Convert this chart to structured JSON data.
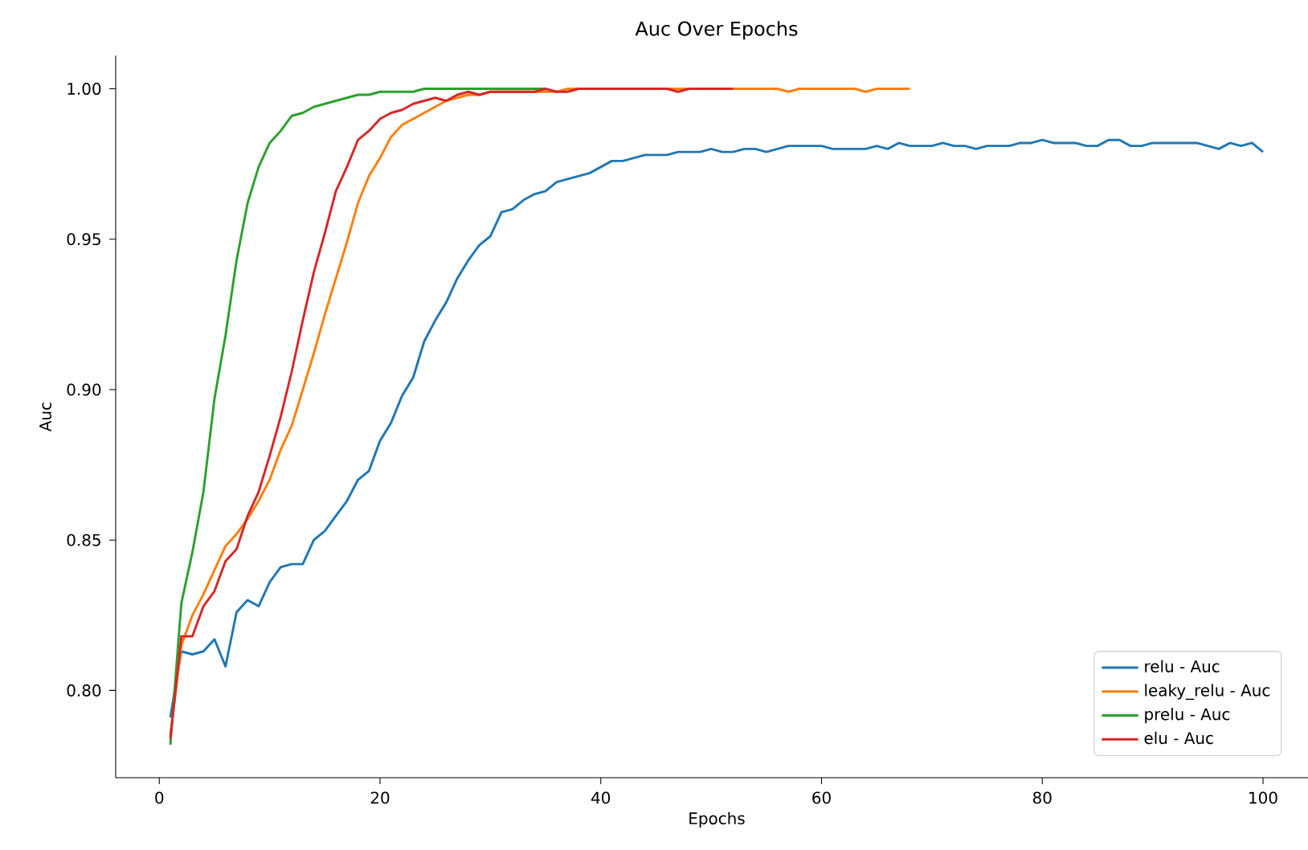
{
  "chart_data": {
    "type": "line",
    "title": "Auc Over Epochs",
    "xlabel": "Epochs",
    "ylabel": "Auc",
    "xlim": [
      -3.95,
      104.95
    ],
    "ylim": [
      0.771,
      1.011
    ],
    "xticks": [
      0,
      20,
      40,
      60,
      80,
      100
    ],
    "yticks": [
      {
        "value": 0.8,
        "label": "0.80"
      },
      {
        "value": 0.85,
        "label": "0.85"
      },
      {
        "value": 0.9,
        "label": "0.90"
      },
      {
        "value": 0.95,
        "label": "0.95"
      },
      {
        "value": 1.0,
        "label": "1.00"
      }
    ],
    "grid": false,
    "legend": "bottom right",
    "marker": "none",
    "line_style": "solid",
    "series": [
      {
        "name": "relu - Auc",
        "color": "#1f77b4",
        "x": [
          1,
          2,
          3,
          4,
          5,
          6,
          7,
          8,
          9,
          10,
          11,
          12,
          13,
          14,
          15,
          16,
          17,
          18,
          19,
          20,
          21,
          22,
          23,
          24,
          25,
          26,
          27,
          28,
          29,
          30,
          31,
          32,
          33,
          34,
          35,
          36,
          37,
          38,
          39,
          40,
          41,
          42,
          43,
          44,
          45,
          46,
          47,
          48,
          49,
          50,
          51,
          52,
          53,
          54,
          55,
          56,
          57,
          58,
          59,
          60,
          61,
          62,
          63,
          64,
          65,
          66,
          67,
          68,
          69,
          70,
          71,
          72,
          73,
          74,
          75,
          76,
          77,
          78,
          79,
          80,
          81,
          82,
          83,
          84,
          85,
          86,
          87,
          88,
          89,
          90,
          91,
          92,
          93,
          94,
          95,
          96,
          97,
          98,
          99,
          100
        ],
        "values": [
          0.791,
          0.813,
          0.812,
          0.813,
          0.817,
          0.808,
          0.826,
          0.83,
          0.828,
          0.836,
          0.841,
          0.842,
          0.842,
          0.85,
          0.853,
          0.858,
          0.863,
          0.87,
          0.873,
          0.883,
          0.889,
          0.898,
          0.904,
          0.916,
          0.923,
          0.929,
          0.937,
          0.943,
          0.948,
          0.951,
          0.959,
          0.96,
          0.963,
          0.965,
          0.966,
          0.969,
          0.97,
          0.971,
          0.972,
          0.974,
          0.976,
          0.976,
          0.977,
          0.978,
          0.978,
          0.978,
          0.979,
          0.979,
          0.979,
          0.98,
          0.979,
          0.979,
          0.98,
          0.98,
          0.979,
          0.98,
          0.981,
          0.981,
          0.981,
          0.981,
          0.98,
          0.98,
          0.98,
          0.98,
          0.981,
          0.98,
          0.982,
          0.981,
          0.981,
          0.981,
          0.982,
          0.981,
          0.981,
          0.98,
          0.981,
          0.981,
          0.981,
          0.982,
          0.982,
          0.983,
          0.982,
          0.982,
          0.982,
          0.981,
          0.981,
          0.983,
          0.983,
          0.981,
          0.981,
          0.982,
          0.982,
          0.982,
          0.982,
          0.982,
          0.981,
          0.98,
          0.982,
          0.981,
          0.982,
          0.979
        ]
      },
      {
        "name": "leaky_relu - Auc",
        "color": "#ff7f0e",
        "x": [
          1,
          2,
          3,
          4,
          5,
          6,
          7,
          8,
          9,
          10,
          11,
          12,
          13,
          14,
          15,
          16,
          17,
          18,
          19,
          20,
          21,
          22,
          23,
          24,
          25,
          26,
          27,
          28,
          29,
          30,
          31,
          32,
          33,
          34,
          35,
          36,
          37,
          38,
          39,
          40,
          41,
          42,
          43,
          44,
          45,
          46,
          47,
          48,
          49,
          50,
          51,
          52,
          53,
          54,
          55,
          56,
          57,
          58,
          59,
          60,
          61,
          62,
          63,
          64,
          65,
          66,
          67,
          68
        ],
        "values": [
          0.785,
          0.815,
          0.825,
          0.832,
          0.84,
          0.848,
          0.852,
          0.857,
          0.863,
          0.87,
          0.88,
          0.888,
          0.9,
          0.912,
          0.925,
          0.937,
          0.949,
          0.962,
          0.971,
          0.977,
          0.984,
          0.988,
          0.99,
          0.992,
          0.994,
          0.996,
          0.997,
          0.998,
          0.998,
          0.999,
          0.999,
          0.999,
          0.999,
          0.999,
          0.999,
          0.999,
          1.0,
          1.0,
          1.0,
          1.0,
          1.0,
          1.0,
          1.0,
          1.0,
          1.0,
          1.0,
          1.0,
          1.0,
          1.0,
          1.0,
          1.0,
          1.0,
          1.0,
          1.0,
          1.0,
          1.0,
          0.999,
          1.0,
          1.0,
          1.0,
          1.0,
          1.0,
          1.0,
          0.999,
          1.0,
          1.0,
          1.0,
          1.0
        ]
      },
      {
        "name": "prelu - Auc",
        "color": "#2ca02c",
        "x": [
          1,
          2,
          3,
          4,
          5,
          6,
          7,
          8,
          9,
          10,
          11,
          12,
          13,
          14,
          15,
          16,
          17,
          18,
          19,
          20,
          21,
          22,
          23,
          24,
          25,
          26,
          27,
          28,
          29,
          30,
          31,
          32,
          33,
          34,
          35
        ],
        "values": [
          0.782,
          0.829,
          0.846,
          0.866,
          0.897,
          0.918,
          0.943,
          0.962,
          0.974,
          0.982,
          0.986,
          0.991,
          0.992,
          0.994,
          0.995,
          0.996,
          0.997,
          0.998,
          0.998,
          0.999,
          0.999,
          0.999,
          0.999,
          1.0,
          1.0,
          1.0,
          1.0,
          1.0,
          1.0,
          1.0,
          1.0,
          1.0,
          1.0,
          1.0,
          1.0
        ]
      },
      {
        "name": "elu - Auc",
        "color": "#d62728",
        "x": [
          1,
          2,
          3,
          4,
          5,
          6,
          7,
          8,
          9,
          10,
          11,
          12,
          13,
          14,
          15,
          16,
          17,
          18,
          19,
          20,
          21,
          22,
          23,
          24,
          25,
          26,
          27,
          28,
          29,
          30,
          31,
          32,
          33,
          34,
          35,
          36,
          37,
          38,
          39,
          40,
          41,
          42,
          43,
          44,
          45,
          46,
          47,
          48,
          49,
          50,
          51,
          52
        ],
        "values": [
          0.784,
          0.818,
          0.818,
          0.828,
          0.833,
          0.843,
          0.847,
          0.858,
          0.866,
          0.878,
          0.891,
          0.906,
          0.923,
          0.939,
          0.952,
          0.966,
          0.974,
          0.983,
          0.986,
          0.99,
          0.992,
          0.993,
          0.995,
          0.996,
          0.997,
          0.996,
          0.998,
          0.999,
          0.998,
          0.999,
          0.999,
          0.999,
          0.999,
          0.999,
          1.0,
          0.999,
          0.999,
          1.0,
          1.0,
          1.0,
          1.0,
          1.0,
          1.0,
          1.0,
          1.0,
          1.0,
          0.999,
          1.0,
          1.0,
          1.0,
          1.0,
          1.0
        ]
      }
    ]
  }
}
